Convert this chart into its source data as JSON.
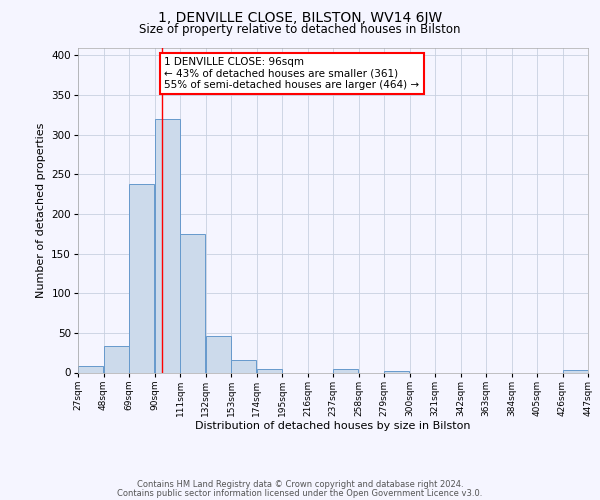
{
  "title": "1, DENVILLE CLOSE, BILSTON, WV14 6JW",
  "subtitle": "Size of property relative to detached houses in Bilston",
  "xlabel": "Distribution of detached houses by size in Bilston",
  "ylabel": "Number of detached properties",
  "footer_line1": "Contains HM Land Registry data © Crown copyright and database right 2024.",
  "footer_line2": "Contains public sector information licensed under the Open Government Licence v3.0.",
  "bins": [
    27,
    48,
    69,
    90,
    111,
    132,
    153,
    174,
    195,
    216,
    237,
    258,
    279,
    300,
    321,
    342,
    363,
    384,
    405,
    426,
    447
  ],
  "bar_heights": [
    8,
    33,
    238,
    320,
    175,
    46,
    16,
    5,
    0,
    0,
    5,
    0,
    2,
    0,
    0,
    0,
    0,
    0,
    0,
    3
  ],
  "bar_color": "#ccdaeb",
  "bar_edge_color": "#6699cc",
  "vline_x": 96,
  "vline_color": "red",
  "annotation_title": "1 DENVILLE CLOSE: 96sqm",
  "annotation_line1": "← 43% of detached houses are smaller (361)",
  "annotation_line2": "55% of semi-detached houses are larger (464) →",
  "annotation_box_color": "white",
  "annotation_box_edge": "red",
  "ylim": [
    0,
    410
  ],
  "background_color": "#f5f5ff",
  "grid_color": "#c8d0e0"
}
